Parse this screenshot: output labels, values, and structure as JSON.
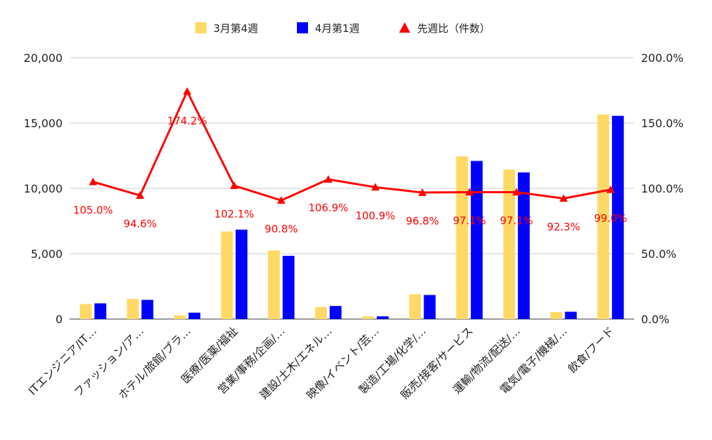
{
  "chart_data": {
    "type": "bar",
    "title": "",
    "xlabel": "",
    "ylabel": "",
    "categories": [
      "ITエンジニア/IT…",
      "ファッション/ア…",
      "ホテル/旅館/ブラ…",
      "医療/医薬/福祉",
      "営業/事務/企画/…",
      "建設/土木/エネル…",
      "映像/イベント/芸…",
      "製造/工場/化学/…",
      "販売/接客/サービス",
      "運輸/物流/配送/…",
      "電気/電子/機械/…",
      "飲食/フード"
    ],
    "series": [
      {
        "name": "3月第4週",
        "type": "bar",
        "axis": "left",
        "color": "#FFD966",
        "values": [
          1150,
          1550,
          280,
          6700,
          5250,
          920,
          200,
          1900,
          12450,
          11450,
          530,
          15650
        ]
      },
      {
        "name": "4月第1週",
        "type": "bar",
        "axis": "left",
        "color": "#0000FF",
        "values": [
          1200,
          1470,
          490,
          6840,
          4840,
          1000,
          210,
          1840,
          12100,
          11220,
          560,
          15550
        ]
      },
      {
        "name": "先週比（件数）",
        "type": "line",
        "axis": "right",
        "color": "#FF0000",
        "values": [
          105.0,
          94.6,
          174.2,
          102.1,
          90.8,
          106.9,
          100.9,
          96.8,
          97.1,
          97.1,
          92.3,
          99.0
        ],
        "labels": [
          "105.0%",
          "94.6%",
          "174.2%",
          "102.1%",
          "90.8%",
          "106.9%",
          "100.9%",
          "96.8%",
          "97.1%",
          "97.1%",
          "92.3%",
          "99.0%"
        ]
      }
    ],
    "ylim": [
      0,
      20000
    ],
    "y_ticks": [
      "0",
      "5,000",
      "10,000",
      "15,000",
      "20,000"
    ],
    "y2lim": [
      0,
      200
    ],
    "y2_ticks": [
      "0.0%",
      "50.0%",
      "100.0%",
      "150.0%",
      "200.0%"
    ],
    "grid": true,
    "legend_position": "top"
  }
}
